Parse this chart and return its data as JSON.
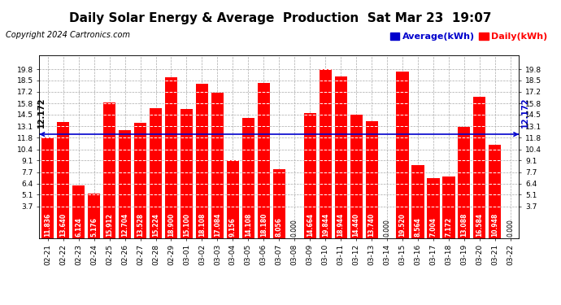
{
  "title": "Daily Solar Energy & Average  Production  Sat Mar 23  19:07",
  "copyright": "Copyright 2024 Cartronics.com",
  "legend_average": "Average(kWh)",
  "legend_daily": "Daily(kWh)",
  "average_value": 12.172,
  "categories": [
    "02-21",
    "02-22",
    "02-23",
    "02-24",
    "02-25",
    "02-26",
    "02-27",
    "02-28",
    "02-29",
    "03-01",
    "03-02",
    "03-03",
    "03-04",
    "03-05",
    "03-06",
    "03-07",
    "03-08",
    "03-09",
    "03-10",
    "03-11",
    "03-12",
    "03-13",
    "03-14",
    "03-15",
    "03-16",
    "03-17",
    "03-18",
    "03-19",
    "03-20",
    "03-21",
    "03-22"
  ],
  "values": [
    11.836,
    13.64,
    6.124,
    5.176,
    15.912,
    12.704,
    13.528,
    15.224,
    18.9,
    15.1,
    18.108,
    17.084,
    9.156,
    14.108,
    18.18,
    8.056,
    0.0,
    14.664,
    19.844,
    18.944,
    14.44,
    13.74,
    0.0,
    19.52,
    8.564,
    7.004,
    7.172,
    13.088,
    16.584,
    10.948,
    0.0
  ],
  "bar_color": "#ff0000",
  "average_line_color": "#0000cc",
  "ylim_min": 0,
  "ylim_max": 21.5,
  "yticks": [
    3.7,
    5.1,
    6.4,
    7.7,
    9.1,
    10.4,
    11.8,
    13.1,
    14.5,
    15.8,
    17.2,
    18.5,
    19.8
  ],
  "background_color": "#ffffff",
  "grid_color": "#aaaaaa",
  "title_fontsize": 11,
  "copyright_fontsize": 7,
  "legend_fontsize": 8,
  "tick_label_fontsize": 6.5,
  "bar_label_fontsize": 5.5,
  "average_label_fontsize": 7
}
